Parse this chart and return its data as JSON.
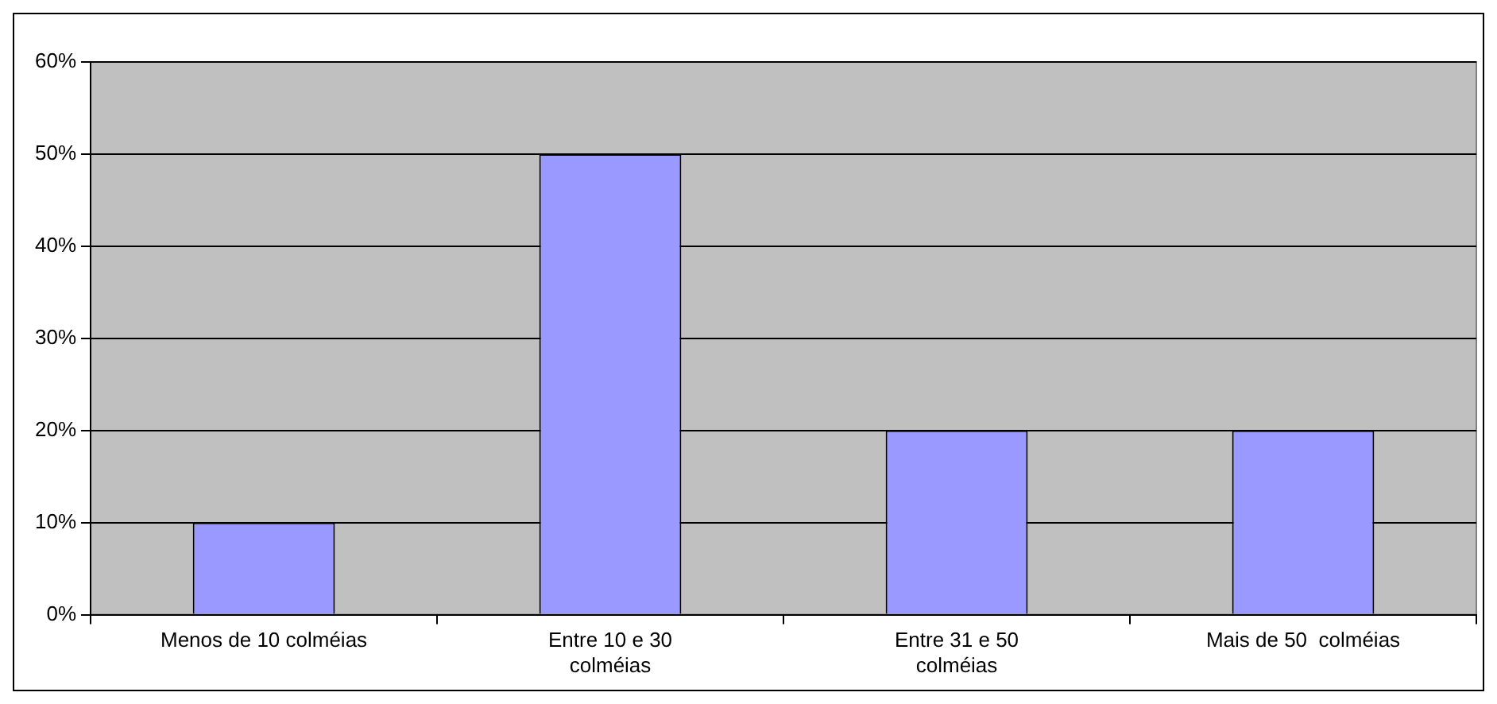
{
  "chart_data": {
    "type": "bar",
    "categories": [
      "Menos de 10 colméias",
      "Entre 10 e 30 colméias",
      "Entre 31 e 50 colméias",
      "Mais de 50  colméias"
    ],
    "values": [
      10,
      50,
      20,
      20
    ],
    "color": "#9999ff",
    "ylim": [
      0,
      60
    ],
    "yticks": [
      {
        "value": 0,
        "label": "0%"
      },
      {
        "value": 10,
        "label": "10%"
      },
      {
        "value": 20,
        "label": "20%"
      },
      {
        "value": 30,
        "label": "30%"
      },
      {
        "value": 40,
        "label": "40%"
      },
      {
        "value": 50,
        "label": "50%"
      },
      {
        "value": 60,
        "label": "60%"
      }
    ],
    "grid": "y"
  }
}
